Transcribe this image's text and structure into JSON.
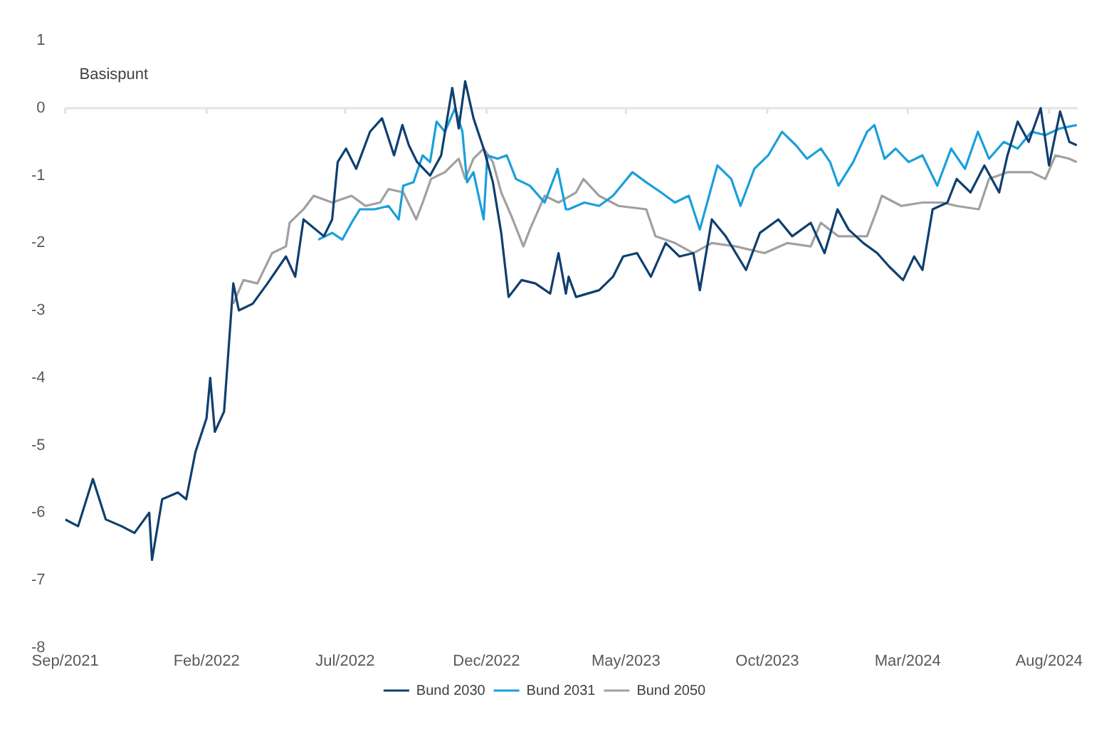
{
  "chart_data": {
    "type": "line",
    "ylabel": "Basispunt",
    "ylim": [
      -8,
      1
    ],
    "yticks": [
      -8,
      -7,
      -6,
      -5,
      -4,
      -3,
      -2,
      -1,
      0,
      1
    ],
    "xlim": [
      "2021-09-01",
      "2024-09-01"
    ],
    "xticks": [
      {
        "value": "2021-09-01",
        "label": "Sep/2021"
      },
      {
        "value": "2022-02-01",
        "label": "Feb/2022"
      },
      {
        "value": "2022-07-01",
        "label": "Jul/2022"
      },
      {
        "value": "2022-12-01",
        "label": "Dec/2022"
      },
      {
        "value": "2023-05-01",
        "label": "May/2023"
      },
      {
        "value": "2023-10-01",
        "label": "Oct/2023"
      },
      {
        "value": "2024-03-01",
        "label": "Mar/2024"
      },
      {
        "value": "2024-08-01",
        "label": "Aug/2024"
      }
    ],
    "grid": false,
    "legend": "bottom",
    "ref_lines": [
      {
        "axis": "y",
        "value": 0,
        "color": "#e3e3e3"
      }
    ],
    "series": [
      {
        "name": "Bund 2030",
        "color": "#0f3f6e",
        "x": [
          "2021-09-01",
          "2021-09-15",
          "2021-10-01",
          "2021-10-15",
          "2021-11-01",
          "2021-11-15",
          "2021-12-01",
          "2021-12-04",
          "2021-12-15",
          "2022-01-01",
          "2022-01-10",
          "2022-01-20",
          "2022-02-01",
          "2022-02-05",
          "2022-02-10",
          "2022-02-20",
          "2022-03-02",
          "2022-03-08",
          "2022-03-23",
          "2022-04-08",
          "2022-04-28",
          "2022-05-08",
          "2022-05-17",
          "2022-06-08",
          "2022-06-17",
          "2022-06-23",
          "2022-07-02",
          "2022-07-13",
          "2022-07-28",
          "2022-08-10",
          "2022-08-23",
          "2022-09-01",
          "2022-09-08",
          "2022-09-17",
          "2022-10-01",
          "2022-10-13",
          "2022-10-25",
          "2022-11-01",
          "2022-11-08",
          "2022-11-17",
          "2022-11-28",
          "2022-12-08",
          "2022-12-17",
          "2022-12-25",
          "2023-01-08",
          "2023-01-23",
          "2023-02-08",
          "2023-02-17",
          "2023-02-25",
          "2023-02-28",
          "2023-03-08",
          "2023-04-02",
          "2023-04-17",
          "2023-04-28",
          "2023-05-13",
          "2023-05-28",
          "2023-06-13",
          "2023-06-28",
          "2023-07-13",
          "2023-07-20",
          "2023-08-02",
          "2023-08-17",
          "2023-09-08",
          "2023-09-23",
          "2023-10-13",
          "2023-10-28",
          "2023-11-17",
          "2023-12-02",
          "2023-12-16",
          "2023-12-28",
          "2024-01-13",
          "2024-01-28",
          "2024-02-10",
          "2024-02-25",
          "2024-03-08",
          "2024-03-17",
          "2024-03-28",
          "2024-04-13",
          "2024-04-23",
          "2024-05-08",
          "2024-05-23",
          "2024-06-08",
          "2024-06-17",
          "2024-06-28",
          "2024-07-10",
          "2024-07-23",
          "2024-08-01",
          "2024-08-13",
          "2024-08-23",
          "2024-08-31"
        ],
        "values": [
          -6.1,
          -6.2,
          -5.5,
          -6.1,
          -6.2,
          -6.3,
          -6.0,
          -6.7,
          -5.8,
          -5.7,
          -5.8,
          -5.1,
          -4.6,
          -4.0,
          -4.8,
          -4.5,
          -2.6,
          -3.0,
          -2.9,
          -2.6,
          -2.2,
          -2.5,
          -1.65,
          -1.9,
          -1.65,
          -0.8,
          -0.6,
          -0.9,
          -0.35,
          -0.15,
          -0.7,
          -0.25,
          -0.55,
          -0.8,
          -1.0,
          -0.7,
          0.3,
          -0.3,
          0.4,
          -0.15,
          -0.6,
          -1.1,
          -1.85,
          -2.8,
          -2.55,
          -2.6,
          -2.75,
          -2.15,
          -2.75,
          -2.5,
          -2.8,
          -2.7,
          -2.5,
          -2.2,
          -2.15,
          -2.5,
          -2.0,
          -2.2,
          -2.15,
          -2.7,
          -1.65,
          -1.9,
          -2.4,
          -1.85,
          -1.65,
          -1.9,
          -1.7,
          -2.15,
          -1.5,
          -1.8,
          -2.0,
          -2.15,
          -2.35,
          -2.55,
          -2.2,
          -2.4,
          -1.5,
          -1.4,
          -1.05,
          -1.25,
          -0.85,
          -1.25,
          -0.7,
          -0.2,
          -0.5,
          0,
          -0.85,
          -0.05,
          -0.5,
          -0.55
        ]
      },
      {
        "name": "Bund 2031",
        "color": "#1a9fdb",
        "x": [
          "2022-06-02",
          "2022-06-17",
          "2022-06-28",
          "2022-07-08",
          "2022-07-17",
          "2022-08-02",
          "2022-08-17",
          "2022-08-28",
          "2022-09-02",
          "2022-09-13",
          "2022-09-23",
          "2022-10-01",
          "2022-10-08",
          "2022-10-17",
          "2022-10-28",
          "2022-11-05",
          "2022-11-10",
          "2022-11-17",
          "2022-11-28",
          "2022-12-02",
          "2022-12-13",
          "2022-12-23",
          "2023-01-02",
          "2023-01-17",
          "2023-02-02",
          "2023-02-16",
          "2023-02-25",
          "2023-02-28",
          "2023-03-17",
          "2023-04-02",
          "2023-04-17",
          "2023-05-08",
          "2023-05-23",
          "2023-06-08",
          "2023-06-23",
          "2023-07-08",
          "2023-07-20",
          "2023-08-08",
          "2023-08-23",
          "2023-09-02",
          "2023-09-17",
          "2023-10-02",
          "2023-10-17",
          "2023-11-01",
          "2023-11-13",
          "2023-11-28",
          "2023-12-08",
          "2023-12-17",
          "2024-01-02",
          "2024-01-17",
          "2024-01-25",
          "2024-02-05",
          "2024-02-17",
          "2024-03-02",
          "2024-03-17",
          "2024-04-02",
          "2024-04-17",
          "2024-05-02",
          "2024-05-16",
          "2024-05-28",
          "2024-06-13",
          "2024-06-28",
          "2024-07-13",
          "2024-07-28",
          "2024-08-13",
          "2024-08-31"
        ],
        "values": [
          -1.95,
          -1.85,
          -1.95,
          -1.7,
          -1.5,
          -1.5,
          -1.45,
          -1.65,
          -1.15,
          -1.1,
          -0.7,
          -0.8,
          -0.2,
          -0.35,
          0,
          -0.35,
          -1.1,
          -0.95,
          -1.65,
          -0.7,
          -0.75,
          -0.7,
          -1.05,
          -1.15,
          -1.4,
          -0.9,
          -1.5,
          -1.5,
          -1.4,
          -1.45,
          -1.3,
          -0.95,
          -1.1,
          -1.25,
          -1.4,
          -1.3,
          -1.8,
          -0.85,
          -1.05,
          -1.45,
          -0.9,
          -0.7,
          -0.35,
          -0.55,
          -0.75,
          -0.6,
          -0.8,
          -1.15,
          -0.8,
          -0.35,
          -0.25,
          -0.75,
          -0.6,
          -0.8,
          -0.7,
          -1.15,
          -0.6,
          -0.9,
          -0.35,
          -0.75,
          -0.5,
          -0.6,
          -0.35,
          -0.4,
          -0.3,
          -0.25
        ]
      },
      {
        "name": "Bund 2050",
        "color": "#a0a0a0",
        "x": [
          "2022-03-02",
          "2022-03-13",
          "2022-03-28",
          "2022-04-13",
          "2022-04-28",
          "2022-05-02",
          "2022-05-17",
          "2022-05-28",
          "2022-06-17",
          "2022-07-08",
          "2022-07-23",
          "2022-08-08",
          "2022-08-17",
          "2022-09-02",
          "2022-09-16",
          "2022-09-23",
          "2022-10-02",
          "2022-10-17",
          "2022-11-01",
          "2022-11-08",
          "2022-11-17",
          "2022-11-28",
          "2022-12-08",
          "2022-12-17",
          "2022-12-28",
          "2023-01-10",
          "2023-01-17",
          "2023-02-02",
          "2023-02-17",
          "2023-03-08",
          "2023-03-16",
          "2023-04-02",
          "2023-04-23",
          "2023-05-23",
          "2023-06-02",
          "2023-06-23",
          "2023-07-13",
          "2023-08-02",
          "2023-08-28",
          "2023-09-28",
          "2023-10-23",
          "2023-11-17",
          "2023-11-28",
          "2023-12-17",
          "2024-01-17",
          "2024-01-28",
          "2024-02-02",
          "2024-02-23",
          "2024-03-17",
          "2024-04-08",
          "2024-04-23",
          "2024-05-17",
          "2024-05-28",
          "2024-06-17",
          "2024-07-13",
          "2024-07-28",
          "2024-08-08",
          "2024-08-23",
          "2024-08-31"
        ],
        "values": [
          -2.9,
          -2.55,
          -2.6,
          -2.15,
          -2.05,
          -1.7,
          -1.5,
          -1.3,
          -1.4,
          -1.3,
          -1.45,
          -1.4,
          -1.2,
          -1.25,
          -1.65,
          -1.4,
          -1.05,
          -0.95,
          -0.75,
          -1.05,
          -0.75,
          -0.6,
          -0.8,
          -1.25,
          -1.6,
          -2.05,
          -1.8,
          -1.3,
          -1.4,
          -1.25,
          -1.05,
          -1.3,
          -1.45,
          -1.5,
          -1.9,
          -2.0,
          -2.15,
          -2.0,
          -2.05,
          -2.15,
          -2.0,
          -2.05,
          -1.7,
          -1.9,
          -1.9,
          -1.5,
          -1.3,
          -1.45,
          -1.4,
          -1.4,
          -1.45,
          -1.5,
          -1.05,
          -0.95,
          -0.95,
          -1.05,
          -0.7,
          -0.75,
          -0.8
        ]
      }
    ]
  }
}
